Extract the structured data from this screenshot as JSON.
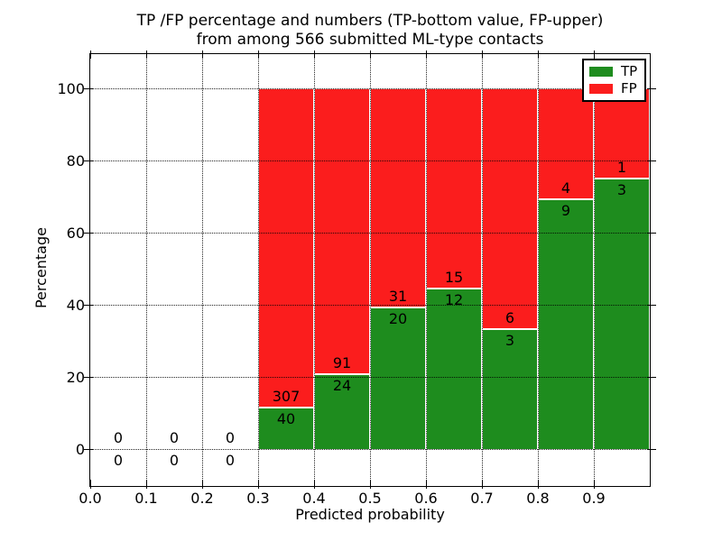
{
  "title": {
    "line1": "TP /FP percentage and numbers (TP-bottom value, FP-upper)",
    "line2": "from among 566 submitted ML-type contacts"
  },
  "axes": {
    "ylabel": "Percentage",
    "xlabel": "Predicted probability",
    "ytick_labels": [
      "0",
      "20",
      "40",
      "60",
      "80",
      "100"
    ],
    "xtick_labels": [
      "0.0",
      "0.1",
      "0.2",
      "0.3",
      "0.4",
      "0.5",
      "0.6",
      "0.7",
      "0.8",
      "0.9"
    ]
  },
  "legend": {
    "items": [
      {
        "label": "TP",
        "color": "#1e8c1e"
      },
      {
        "label": "FP",
        "color": "#fb1d1d"
      }
    ]
  },
  "chart_data": {
    "type": "bar",
    "subtype": "stacked-percentage",
    "title": "TP /FP percentage and numbers (TP-bottom value, FP-upper) from among 566 submitted ML-type contacts",
    "xlabel": "Predicted probability",
    "ylabel": "Percentage",
    "xlim": [
      0.0,
      1.0
    ],
    "ylim": [
      -10,
      110
    ],
    "grid": "dotted",
    "legend_position": "upper right",
    "total_contacts": 566,
    "colors": {
      "tp": "#1e8c1e",
      "fp": "#fb1d1d"
    },
    "series_note": "bars normalized to 100%; labels show raw counts, TP bottom / FP upper",
    "bins": [
      {
        "range": [
          0.0,
          0.1
        ],
        "tp": 0,
        "fp": 0
      },
      {
        "range": [
          0.1,
          0.2
        ],
        "tp": 0,
        "fp": 0
      },
      {
        "range": [
          0.2,
          0.3
        ],
        "tp": 0,
        "fp": 0
      },
      {
        "range": [
          0.3,
          0.4
        ],
        "tp": 40,
        "fp": 307
      },
      {
        "range": [
          0.4,
          0.5
        ],
        "tp": 24,
        "fp": 91
      },
      {
        "range": [
          0.5,
          0.6
        ],
        "tp": 20,
        "fp": 31
      },
      {
        "range": [
          0.6,
          0.7
        ],
        "tp": 12,
        "fp": 15
      },
      {
        "range": [
          0.7,
          0.8
        ],
        "tp": 3,
        "fp": 6
      },
      {
        "range": [
          0.8,
          0.9
        ],
        "tp": 9,
        "fp": 4
      },
      {
        "range": [
          0.9,
          1.0
        ],
        "tp": 3,
        "fp": 1
      }
    ]
  }
}
